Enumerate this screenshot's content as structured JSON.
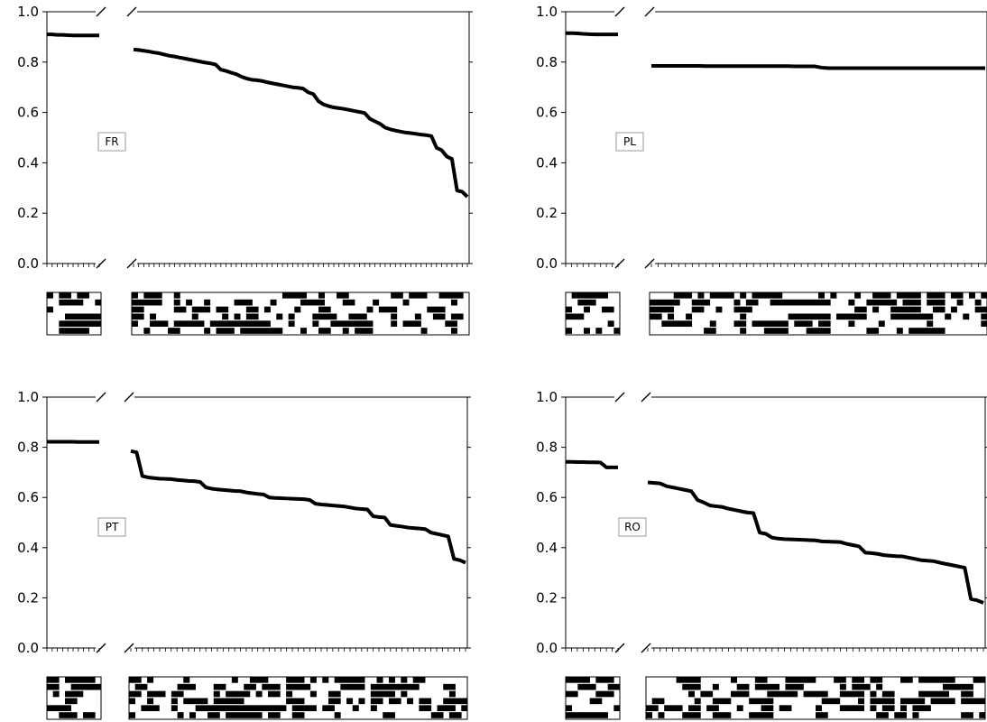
{
  "chart_data": [
    {
      "type": "line",
      "label": "FR",
      "ylim": [
        0,
        1
      ],
      "yticks": [
        "0.0",
        "0.2",
        "0.4",
        "0.6",
        "0.8",
        "1.0"
      ],
      "short_series": [
        0.91,
        0.91,
        0.908,
        0.908,
        0.907,
        0.906,
        0.906,
        0.906,
        0.906,
        0.906,
        0.906
      ],
      "long_series": [
        0.85,
        0.848,
        0.845,
        0.842,
        0.838,
        0.835,
        0.83,
        0.825,
        0.822,
        0.818,
        0.814,
        0.81,
        0.806,
        0.802,
        0.798,
        0.795,
        0.79,
        0.77,
        0.765,
        0.758,
        0.752,
        0.742,
        0.735,
        0.73,
        0.728,
        0.725,
        0.72,
        0.716,
        0.712,
        0.708,
        0.704,
        0.7,
        0.698,
        0.695,
        0.68,
        0.673,
        0.645,
        0.632,
        0.625,
        0.62,
        0.617,
        0.614,
        0.61,
        0.606,
        0.602,
        0.598,
        0.575,
        0.565,
        0.555,
        0.54,
        0.533,
        0.528,
        0.524,
        0.52,
        0.518,
        0.515,
        0.512,
        0.51,
        0.506,
        0.46,
        0.45,
        0.425,
        0.415,
        0.29,
        0.285,
        0.265
      ]
    },
    {
      "type": "line",
      "label": "PL",
      "ylim": [
        0,
        1
      ],
      "yticks": [
        "0.0",
        "0.2",
        "0.4",
        "0.6",
        "0.8",
        "1.0"
      ],
      "short_series": [
        0.915,
        0.915,
        0.914,
        0.912,
        0.911,
        0.91,
        0.91,
        0.91,
        0.91,
        0.91
      ],
      "long_series": [
        0.785,
        0.785,
        0.785,
        0.785,
        0.785,
        0.785,
        0.785,
        0.785,
        0.784,
        0.784,
        0.784,
        0.784,
        0.784,
        0.784,
        0.784,
        0.784,
        0.784,
        0.784,
        0.784,
        0.784,
        0.784,
        0.783,
        0.783,
        0.783,
        0.783,
        0.778,
        0.776,
        0.776,
        0.776,
        0.776,
        0.776,
        0.776,
        0.776,
        0.776,
        0.776,
        0.776,
        0.776,
        0.776,
        0.776,
        0.776,
        0.776,
        0.776,
        0.776,
        0.776,
        0.776,
        0.776,
        0.776,
        0.776,
        0.776,
        0.776
      ]
    },
    {
      "type": "line",
      "label": "PT",
      "ylim": [
        0,
        1
      ],
      "yticks": [
        "0.0",
        "0.2",
        "0.4",
        "0.6",
        "0.8",
        "1.0"
      ],
      "short_series": [
        0.822,
        0.822,
        0.822,
        0.822,
        0.822,
        0.822,
        0.821,
        0.821,
        0.821,
        0.821,
        0.821
      ],
      "long_series": [
        0.785,
        0.78,
        0.685,
        0.68,
        0.677,
        0.675,
        0.674,
        0.673,
        0.67,
        0.668,
        0.666,
        0.665,
        0.662,
        0.64,
        0.635,
        0.632,
        0.63,
        0.628,
        0.626,
        0.625,
        0.62,
        0.617,
        0.614,
        0.612,
        0.6,
        0.598,
        0.597,
        0.596,
        0.595,
        0.594,
        0.593,
        0.59,
        0.575,
        0.572,
        0.57,
        0.568,
        0.566,
        0.564,
        0.56,
        0.556,
        0.554,
        0.552,
        0.525,
        0.522,
        0.52,
        0.49,
        0.487,
        0.484,
        0.48,
        0.478,
        0.476,
        0.474,
        0.46,
        0.455,
        0.45,
        0.445,
        0.355,
        0.35,
        0.34
      ]
    },
    {
      "type": "line",
      "label": "RO",
      "ylim": [
        0,
        1
      ],
      "yticks": [
        "0.0",
        "0.2",
        "0.4",
        "0.6",
        "0.8",
        "1.0"
      ],
      "short_series": [
        0.742,
        0.742,
        0.741,
        0.741,
        0.74,
        0.74,
        0.739,
        0.72,
        0.72,
        0.72
      ],
      "long_series": [
        0.66,
        0.658,
        0.656,
        0.645,
        0.64,
        0.635,
        0.63,
        0.625,
        0.59,
        0.58,
        0.568,
        0.565,
        0.562,
        0.555,
        0.55,
        0.545,
        0.54,
        0.538,
        0.46,
        0.455,
        0.44,
        0.436,
        0.434,
        0.433,
        0.432,
        0.431,
        0.43,
        0.429,
        0.425,
        0.424,
        0.423,
        0.422,
        0.415,
        0.41,
        0.405,
        0.38,
        0.378,
        0.375,
        0.37,
        0.368,
        0.366,
        0.365,
        0.36,
        0.355,
        0.35,
        0.348,
        0.346,
        0.34,
        0.335,
        0.33,
        0.325,
        0.32,
        0.195,
        0.19,
        0.18
      ]
    }
  ],
  "binary_matrices": [
    {
      "short": {
        "rows": 6,
        "cols": 9,
        "fill": 0.45,
        "seed": 11
      },
      "long": {
        "rows": 6,
        "cols": 56,
        "fill": 0.38,
        "seed": 12
      }
    },
    {
      "short": {
        "rows": 6,
        "cols": 9,
        "fill": 0.45,
        "seed": 21
      },
      "long": {
        "rows": 6,
        "cols": 56,
        "fill": 0.5,
        "seed": 22
      }
    },
    {
      "short": {
        "rows": 6,
        "cols": 9,
        "fill": 0.4,
        "seed": 31
      },
      "long": {
        "rows": 6,
        "cols": 56,
        "fill": 0.36,
        "seed": 32
      }
    },
    {
      "short": {
        "rows": 6,
        "cols": 9,
        "fill": 0.45,
        "seed": 41
      },
      "long": {
        "rows": 6,
        "cols": 56,
        "fill": 0.3,
        "seed": 42
      }
    }
  ]
}
